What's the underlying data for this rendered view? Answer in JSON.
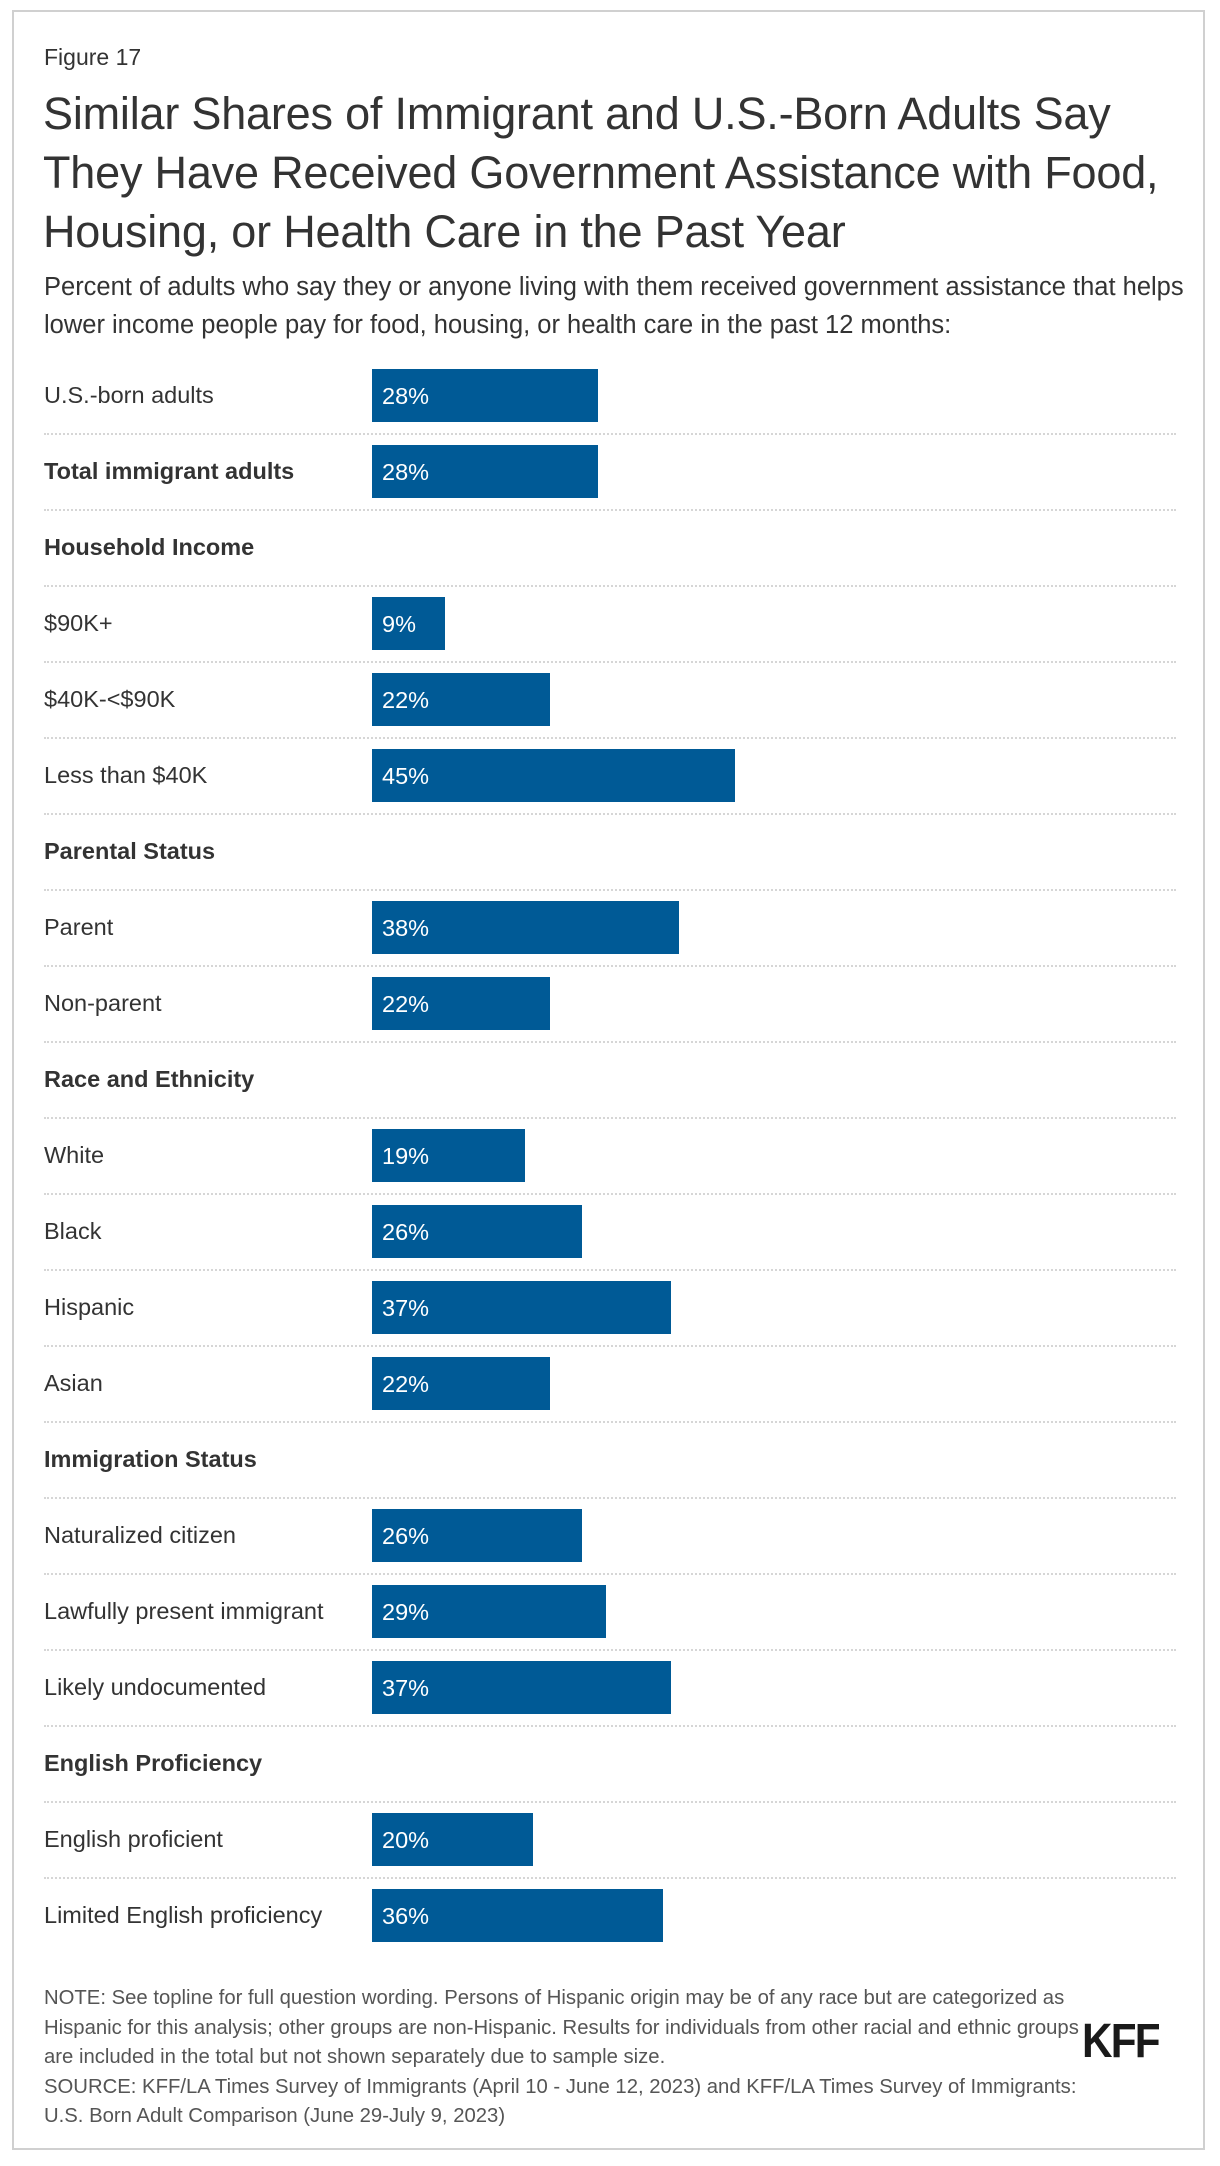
{
  "figure_label": "Figure 17",
  "chart_data": {
    "type": "bar",
    "orientation": "horizontal",
    "title": "Similar Shares of Immigrant and U.S.-Born Adults Say They Have Received Government Assistance with Food, Housing, or Health Care in the Past Year",
    "subtitle": "Percent of adults who say they or anyone living with them received government assistance that helps lower income people pay for food, housing, or health care in the past 12 months:",
    "bar_color": "#005a96",
    "unit": "%",
    "rows": [
      {
        "label": "U.S.-born adults",
        "value": 28,
        "text": "28%",
        "bold": false
      },
      {
        "label": "Total immigrant adults",
        "value": 28,
        "text": "28%",
        "bold": true
      },
      {
        "label": "Household Income",
        "header": true
      },
      {
        "label": "$90K+",
        "value": 9,
        "text": "9%"
      },
      {
        "label": "$40K-<$90K",
        "value": 22,
        "text": "22%"
      },
      {
        "label": "Less than $40K",
        "value": 45,
        "text": "45%"
      },
      {
        "label": "Parental Status",
        "header": true
      },
      {
        "label": "Parent",
        "value": 38,
        "text": "38%"
      },
      {
        "label": "Non-parent",
        "value": 22,
        "text": "22%"
      },
      {
        "label": "Race and Ethnicity",
        "header": true
      },
      {
        "label": "White",
        "value": 19,
        "text": "19%"
      },
      {
        "label": "Black",
        "value": 26,
        "text": "26%"
      },
      {
        "label": "Hispanic",
        "value": 37,
        "text": "37%"
      },
      {
        "label": "Asian",
        "value": 22,
        "text": "22%"
      },
      {
        "label": "Immigration Status",
        "header": true
      },
      {
        "label": "Naturalized citizen",
        "value": 26,
        "text": "26%"
      },
      {
        "label": "Lawfully present immigrant",
        "value": 29,
        "text": "29%"
      },
      {
        "label": "Likely undocumented",
        "value": 37,
        "text": "37%"
      },
      {
        "label": "English Proficiency",
        "header": true
      },
      {
        "label": "English proficient",
        "value": 20,
        "text": "20%"
      },
      {
        "label": "Limited English proficiency",
        "value": 36,
        "text": "36%"
      }
    ]
  },
  "footer": {
    "note": "NOTE: See topline for full question wording. Persons of Hispanic origin may be of any race but are categorized as Hispanic for this analysis; other groups are non-Hispanic. Results for individuals from other racial and ethnic groups are included in the total but not shown separately due to sample size.",
    "source": "SOURCE: KFF/LA Times Survey of Immigrants (April 10 - June 12, 2023) and KFF/LA Times Survey of Immigrants: U.S. Born Adult Comparison (June 29-July 9, 2023)",
    "logo": "KFF"
  }
}
